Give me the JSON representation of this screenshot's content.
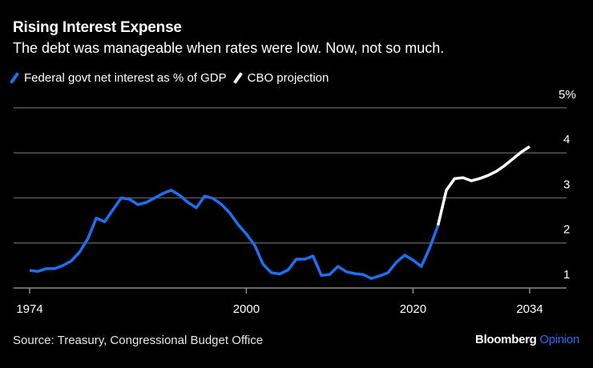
{
  "chart_data": {
    "type": "line",
    "title": "Rising Interest Expense",
    "subtitle": "The debt was manageable when rates were low. Now, not so much.",
    "xlabel": "",
    "ylabel": "",
    "xlim": [
      1972.5,
      2038.5
    ],
    "ylim": [
      1,
      5
    ],
    "grid": true,
    "legend_position": "top-left",
    "x_ticks": [
      1974,
      2000,
      2020,
      2034
    ],
    "y_ticks": [
      {
        "value": 1,
        "label": "1"
      },
      {
        "value": 2,
        "label": "2"
      },
      {
        "value": 3,
        "label": "3"
      },
      {
        "value": 4,
        "label": "4"
      },
      {
        "value": 5,
        "label": "5%"
      }
    ],
    "series": [
      {
        "name": "Federal govt net interest as % of GDP",
        "color": "#1f6ff2",
        "x": [
          1974,
          1975,
          1976,
          1977,
          1978,
          1979,
          1980,
          1981,
          1982,
          1983,
          1984,
          1985,
          1986,
          1987,
          1988,
          1989,
          1990,
          1991,
          1992,
          1993,
          1994,
          1995,
          1996,
          1997,
          1998,
          1999,
          2000,
          2001,
          2002,
          2003,
          2004,
          2005,
          2006,
          2007,
          2008,
          2009,
          2010,
          2011,
          2012,
          2013,
          2014,
          2015,
          2016,
          2017,
          2018,
          2019,
          2020,
          2021,
          2022,
          2023
        ],
        "values": [
          1.39,
          1.37,
          1.43,
          1.43,
          1.5,
          1.6,
          1.8,
          2.1,
          2.55,
          2.47,
          2.74,
          3.0,
          2.97,
          2.85,
          2.9,
          3.0,
          3.1,
          3.17,
          3.06,
          2.9,
          2.78,
          3.04,
          2.99,
          2.86,
          2.67,
          2.41,
          2.2,
          1.95,
          1.53,
          1.34,
          1.31,
          1.4,
          1.64,
          1.64,
          1.71,
          1.28,
          1.3,
          1.48,
          1.36,
          1.32,
          1.3,
          1.21,
          1.27,
          1.34,
          1.57,
          1.73,
          1.62,
          1.48,
          1.89,
          2.39
        ]
      },
      {
        "name": "CBO projection",
        "color": "#ffffff",
        "x": [
          2023,
          2024,
          2025,
          2026,
          2027,
          2028,
          2029,
          2030,
          2031,
          2032,
          2033,
          2034
        ],
        "values": [
          2.39,
          3.17,
          3.43,
          3.45,
          3.38,
          3.43,
          3.5,
          3.59,
          3.72,
          3.87,
          4.02,
          4.14
        ]
      }
    ]
  },
  "source": "Source: Treasury, Congressional Budget Office",
  "brand": {
    "name": "Bloomberg",
    "suffix": "Opinion",
    "suffix_color": "#1f6ff2"
  }
}
